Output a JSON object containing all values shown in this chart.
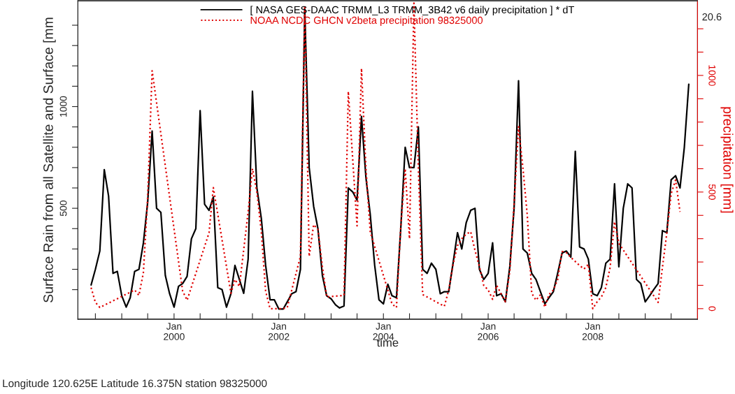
{
  "chart_data": {
    "type": "line",
    "xlabel": "time",
    "ylabel": "Surface Rain from all Satellite and Surface [mm",
    "y2label": "precipitation [mm]",
    "annotations": [
      "Longitude 120.625E Latitude 16.375N station 98325000",
      "20.6"
    ],
    "legend": "top",
    "grid": false,
    "x": [
      "1998-06",
      "1998-07",
      "1998-08",
      "1998-09",
      "1998-10",
      "1998-11",
      "1998-12",
      "1999-01",
      "1999-02",
      "1999-03",
      "1999-04",
      "1999-05",
      "1999-06",
      "1999-07",
      "1999-08",
      "1999-09",
      "1999-10",
      "1999-11",
      "1999-12",
      "2000-01",
      "2000-02",
      "2000-03",
      "2000-04",
      "2000-05",
      "2000-06",
      "2000-07",
      "2000-08",
      "2000-09",
      "2000-10",
      "2000-11",
      "2000-12",
      "2001-01",
      "2001-02",
      "2001-03",
      "2001-04",
      "2001-05",
      "2001-06",
      "2001-07",
      "2001-08",
      "2001-09",
      "2001-10",
      "2001-11",
      "2001-12",
      "2002-01",
      "2002-02",
      "2002-03",
      "2002-04",
      "2002-05",
      "2002-06",
      "2002-07",
      "2002-08",
      "2002-09",
      "2002-10",
      "2002-11",
      "2002-12",
      "2003-01",
      "2003-02",
      "2003-03",
      "2003-04",
      "2003-05",
      "2003-06",
      "2003-07",
      "2003-08",
      "2003-09",
      "2003-10",
      "2003-11",
      "2003-12",
      "2004-01",
      "2004-02",
      "2004-03",
      "2004-04",
      "2004-05",
      "2004-06",
      "2004-07",
      "2004-08",
      "2004-09",
      "2004-10",
      "2004-11",
      "2004-12",
      "2005-01",
      "2005-02",
      "2005-03",
      "2005-04",
      "2005-05",
      "2005-06",
      "2005-07",
      "2005-08",
      "2005-09",
      "2005-10",
      "2005-11",
      "2005-12",
      "2006-01",
      "2006-02",
      "2006-03",
      "2006-04",
      "2006-05",
      "2006-06",
      "2006-07",
      "2006-08",
      "2006-09",
      "2006-10",
      "2006-11",
      "2006-12",
      "2007-01",
      "2007-02",
      "2007-03",
      "2007-04",
      "2007-05",
      "2007-06",
      "2007-07",
      "2007-08",
      "2007-09",
      "2007-10",
      "2007-11",
      "2007-12",
      "2008-01",
      "2008-02",
      "2008-03",
      "2008-04",
      "2008-05",
      "2008-06",
      "2008-07",
      "2008-08",
      "2008-09",
      "2008-10",
      "2008-11",
      "2008-12",
      "2009-01",
      "2009-02",
      "2009-03",
      "2009-04",
      "2009-05",
      "2009-06",
      "2009-07",
      "2009-08",
      "2009-09",
      "2009-10",
      "2009-11"
    ],
    "xlim": [
      "1998-03",
      "2010-01"
    ],
    "xticks": [
      {
        "value": "1998-07",
        "label": null
      },
      {
        "value": "1999-01",
        "label": null
      },
      {
        "value": "1999-07",
        "label": null
      },
      {
        "value": "2000-01",
        "label": "Jan\n2000"
      },
      {
        "value": "2000-07",
        "label": null
      },
      {
        "value": "2001-01",
        "label": null
      },
      {
        "value": "2001-07",
        "label": null
      },
      {
        "value": "2002-01",
        "label": "Jan\n2002"
      },
      {
        "value": "2002-07",
        "label": null
      },
      {
        "value": "2003-01",
        "label": null
      },
      {
        "value": "2003-07",
        "label": null
      },
      {
        "value": "2004-01",
        "label": "Jan\n2004"
      },
      {
        "value": "2004-07",
        "label": null
      },
      {
        "value": "2005-01",
        "label": null
      },
      {
        "value": "2005-07",
        "label": null
      },
      {
        "value": "2006-01",
        "label": "Jan\n2006"
      },
      {
        "value": "2006-07",
        "label": null
      },
      {
        "value": "2007-01",
        "label": null
      },
      {
        "value": "2007-07",
        "label": null
      },
      {
        "value": "2008-01",
        "label": "Jan\n2008"
      },
      {
        "value": "2008-07",
        "label": null
      },
      {
        "value": "2009-01",
        "label": null
      },
      {
        "value": "2009-07",
        "label": null
      }
    ],
    "ylim": [
      -45,
      1520
    ],
    "yticks": [
      {
        "value": 100,
        "label": null
      },
      {
        "value": 200,
        "label": null
      },
      {
        "value": 300,
        "label": null
      },
      {
        "value": 400,
        "label": null
      },
      500,
      {
        "value": 600,
        "label": null
      },
      {
        "value": 700,
        "label": null
      },
      {
        "value": 800,
        "label": null
      },
      {
        "value": 900,
        "label": null
      },
      1000,
      {
        "value": 1100,
        "label": null
      },
      {
        "value": 1200,
        "label": null
      },
      {
        "value": 1300,
        "label": null
      },
      {
        "value": 1400,
        "label": null
      }
    ],
    "y2lim": [
      -45,
      1320
    ],
    "y2ticks": [
      0,
      {
        "value": 100,
        "label": null
      },
      {
        "value": 200,
        "label": null
      },
      {
        "value": 300,
        "label": null
      },
      {
        "value": 400,
        "label": null
      },
      500,
      {
        "value": 600,
        "label": null
      },
      {
        "value": 700,
        "label": null
      },
      {
        "value": 800,
        "label": null
      },
      {
        "value": 900,
        "label": null
      },
      1000,
      {
        "value": 1100,
        "label": null
      },
      {
        "value": 1200,
        "label": null
      }
    ],
    "series": [
      {
        "name": "[ NASA GES-DAAC TRMM_L3 TRMM_3B42 v6 daily precipitation ] * dT",
        "color": "#000000",
        "line_style": "solid",
        "values": [
          123,
          200,
          290,
          690,
          560,
          180,
          190,
          70,
          14,
          60,
          190,
          200,
          330,
          530,
          880,
          500,
          480,
          170,
          80,
          14,
          116,
          130,
          165,
          350,
          400,
          980,
          520,
          490,
          555,
          110,
          100,
          14,
          80,
          219,
          150,
          82,
          250,
          1075,
          600,
          450,
          220,
          50,
          50,
          5,
          5,
          40,
          80,
          90,
          200,
          1480,
          700,
          510,
          400,
          170,
          70,
          55,
          25,
          10,
          20,
          600,
          580,
          540,
          952,
          650,
          470,
          220,
          50,
          30,
          127,
          70,
          60,
          400,
          800,
          700,
          700,
          900,
          200,
          180,
          230,
          200,
          80,
          90,
          90,
          230,
          380,
          300,
          430,
          490,
          500,
          200,
          150,
          180,
          330,
          70,
          80,
          40,
          212,
          500,
          1127,
          300,
          280,
          180,
          150,
          90,
          30,
          60,
          90,
          180,
          280,
          290,
          260,
          780,
          310,
          300,
          250,
          80,
          70,
          110,
          230,
          250,
          620,
          212,
          500,
          620,
          600,
          150,
          130,
          40,
          70,
          100,
          130,
          390,
          380,
          640,
          660,
          600,
          800,
          1110
        ]
      },
      {
        "name": "NOAA NCDC GHCN v2beta precipitation 98325000",
        "color": "#e00000",
        "line_style": "dotted",
        "axis": "y2",
        "values": [
          90,
          27,
          5,
          null,
          null,
          null,
          null,
          null,
          null,
          null,
          80,
          57,
          155,
          480,
          1020,
          null,
          null,
          null,
          null,
          null,
          null,
          75,
          36,
          null,
          null,
          null,
          null,
          325,
          519,
          null,
          null,
          null,
          66,
          125,
          95,
          null,
          415,
          600,
          500,
          330,
          75,
          0,
          0,
          0,
          0,
          5,
          null,
          null,
          224,
          1300,
          224,
          360,
          340,
          180,
          50,
          null,
          null,
          null,
          57,
          931,
          null,
          355,
          1030,
          600,
          330,
          null,
          null,
          null,
          null,
          20,
          5,
          350,
          600,
          300,
          1310,
          600,
          60,
          50,
          null,
          null,
          null,
          10,
          80,
          190,
          270,
          300,
          320,
          330,
          250,
          180,
          100,
          80,
          40,
          100,
          null,
          30,
          160,
          450,
          780,
          600,
          400,
          66,
          36,
          60,
          6,
          60,
          80,
          125,
          245,
          240,
          220,
          null,
          185,
          170,
          190,
          0,
          30,
          50,
          90,
          176,
          373,
          280,
          null,
          null,
          null,
          null,
          null,
          null,
          null,
          null,
          27,
          176,
          325,
          493,
          552,
          415,
          null,
          null
        ]
      }
    ]
  }
}
